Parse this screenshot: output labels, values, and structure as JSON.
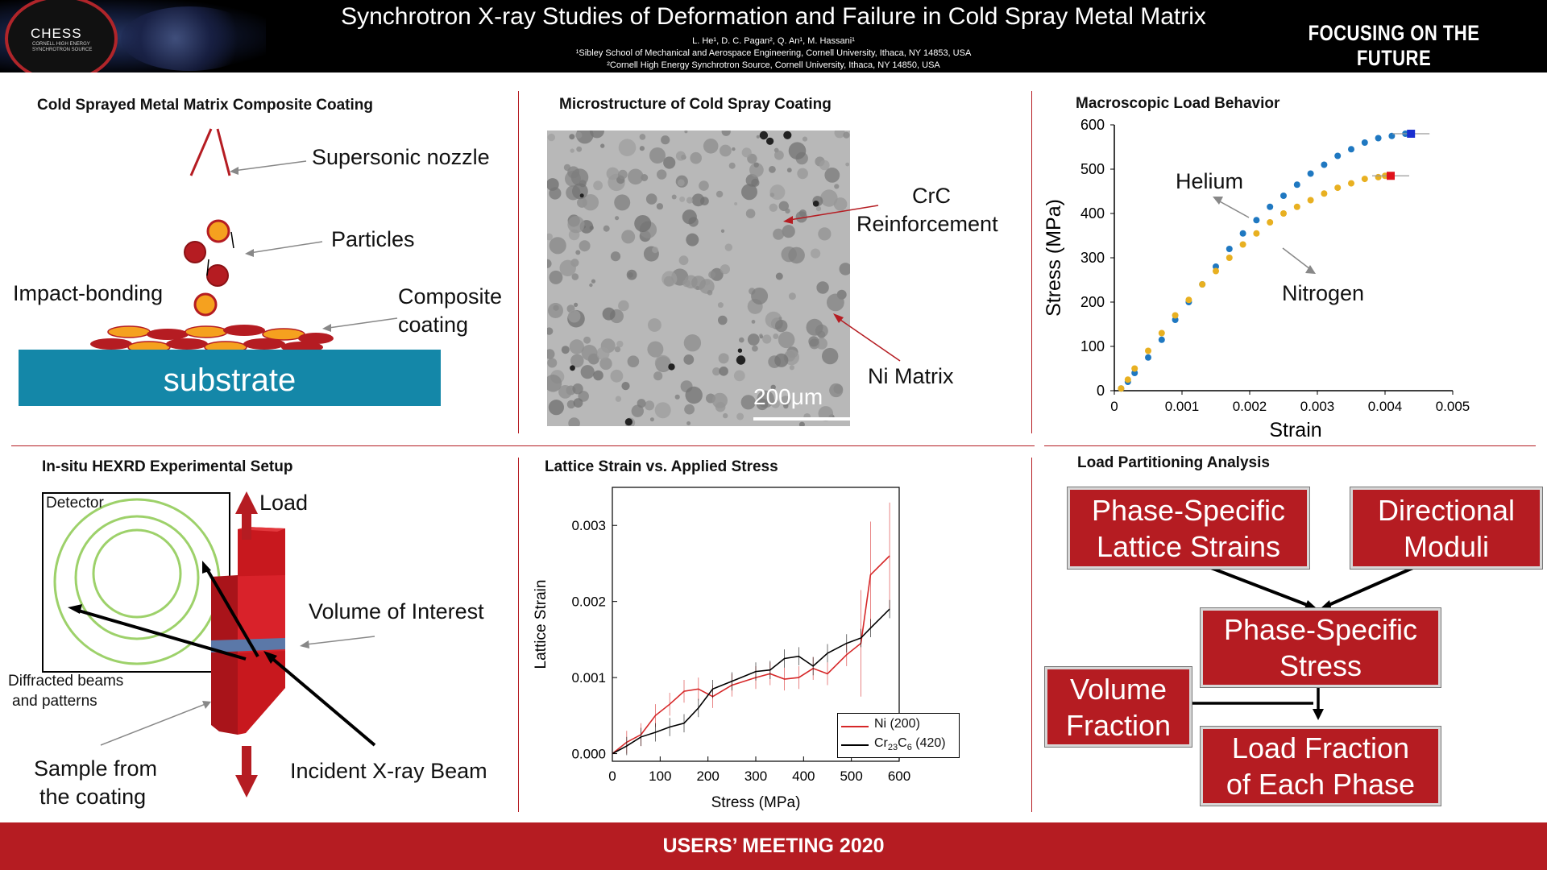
{
  "header": {
    "title": "Synchrotron X-ray Studies of Deformation and Failure in Cold Spray Metal Matrix",
    "authors": "L. He¹, D. C. Pagan², Q. An¹, M. Hassani¹",
    "affiliation1": "¹Sibley School of Mechanical and Aerospace Engineering, Cornell University, Ithaca, NY 14853, USA",
    "affiliation2": "²Cornell High Energy Synchrotron Source, Cornell University, Ithaca, NY 14850, USA",
    "tagline": "FOCUSING ON THE FUTURE",
    "logo_text": "CHESS",
    "logo_subtext": "CORNELL HIGH ENERGY SYNCHROTRON SOURCE"
  },
  "footer": {
    "text": "USERS’ MEETING 2020"
  },
  "panel1": {
    "title": "Cold Sprayed Metal Matrix Composite Coating",
    "nozzle": "Supersonic nozzle",
    "particles": "Particles",
    "impact": "Impact-bonding",
    "composite1": "Composite",
    "composite2": "coating",
    "substrate": "substrate"
  },
  "panel2": {
    "title": "Microstructure of Cold Spray Coating",
    "crc1": "CrC",
    "crc2": "Reinforcement",
    "ni": "Ni Matrix",
    "scale": "200μm"
  },
  "panel3": {
    "title": "Macroscopic Load Behavior",
    "helium": "Helium",
    "nitrogen": "Nitrogen",
    "colors": {
      "helium": "#1f78c1",
      "nitrogen": "#e8b021",
      "helium_end": "#1a2fd0",
      "nitrogen_end": "#e0121b"
    }
  },
  "panel4": {
    "title": "In-situ HEXRD Experimental Setup",
    "detector": "Detector",
    "load": "Load",
    "voi": "Volume of Interest",
    "diffracted1": "Diffracted beams",
    "diffracted2": "and patterns",
    "sample1": "Sample from",
    "sample2": "the coating",
    "beam": "Incident X-ray Beam"
  },
  "panel5": {
    "title": "Lattice Strain vs. Applied Stress",
    "legend_ni": "Ni (200)",
    "legend_cr_main": "Cr",
    "legend_cr_sub1": "23",
    "legend_cr_mid": "C",
    "legend_cr_sub2": "6",
    "legend_cr_tail": " (420)"
  },
  "panel6": {
    "title": "Load Partitioning Analysis",
    "box1_l1": "Phase-Specific",
    "box1_l2": "Lattice Strains",
    "box2_l1": "Directional",
    "box2_l2": "Moduli",
    "box3_l1": "Phase-Specific",
    "box3_l2": "Stress",
    "box4_l1": "Volume",
    "box4_l2": "Fraction",
    "box5_l1": "Load Fraction",
    "box5_l2": "of Each Phase"
  },
  "chart_data": [
    {
      "type": "scatter",
      "title": "Macroscopic Load Behavior",
      "xlabel": "Strain",
      "ylabel": "Stress (MPa)",
      "xlim": [
        0,
        0.005
      ],
      "ylim": [
        0,
        600
      ],
      "xticks": [
        "0",
        "0.001",
        "0.002",
        "0.003",
        "0.004",
        "0.005"
      ],
      "yticks": [
        "0",
        "100",
        "200",
        "300",
        "400",
        "500",
        "600"
      ],
      "grid": false,
      "series": [
        {
          "name": "Helium",
          "x": [
            0.0001,
            0.0002,
            0.0003,
            0.0005,
            0.0007,
            0.0009,
            0.0011,
            0.0013,
            0.0015,
            0.0017,
            0.0019,
            0.0021,
            0.0023,
            0.0025,
            0.0027,
            0.0029,
            0.0031,
            0.0033,
            0.0035,
            0.0037,
            0.0039,
            0.0041,
            0.0043
          ],
          "y": [
            5,
            20,
            40,
            75,
            115,
            160,
            200,
            240,
            280,
            320,
            355,
            385,
            415,
            440,
            465,
            490,
            510,
            530,
            545,
            560,
            570,
            575,
            580
          ]
        },
        {
          "name": "Nitrogen",
          "x": [
            0.0001,
            0.0002,
            0.0003,
            0.0005,
            0.0007,
            0.0009,
            0.0011,
            0.0013,
            0.0015,
            0.0017,
            0.0019,
            0.0021,
            0.0023,
            0.0025,
            0.0027,
            0.0029,
            0.0031,
            0.0033,
            0.0035,
            0.0037,
            0.0039,
            0.004
          ],
          "y": [
            5,
            25,
            50,
            90,
            130,
            170,
            205,
            240,
            270,
            300,
            330,
            355,
            380,
            400,
            415,
            430,
            445,
            458,
            468,
            478,
            482,
            485
          ]
        }
      ]
    },
    {
      "type": "line",
      "title": "Lattice Strain vs. Applied Stress",
      "xlabel": "Stress (MPa)",
      "ylabel": "Lattice Strain",
      "xlim": [
        0,
        600
      ],
      "ylim": [
        -0.0001,
        0.0035
      ],
      "xticks": [
        "0",
        "100",
        "200",
        "300",
        "400",
        "500",
        "600"
      ],
      "yticks": [
        "0.000",
        "0.001",
        "0.002",
        "0.003"
      ],
      "legend_position": "bottom-right",
      "series": [
        {
          "name": "Ni (200)",
          "color": "#d62728",
          "x": [
            0,
            30,
            60,
            90,
            120,
            150,
            180,
            210,
            250,
            300,
            330,
            360,
            390,
            420,
            450,
            490,
            520,
            540,
            580
          ],
          "y": [
            0.0,
            0.00015,
            0.00025,
            0.0005,
            0.00065,
            0.00082,
            0.00085,
            0.00075,
            0.0009,
            0.001,
            0.00105,
            0.00098,
            0.001,
            0.00112,
            0.00105,
            0.0013,
            0.00145,
            0.00235,
            0.0026
          ]
        },
        {
          "name": "Cr23C6 (420)",
          "color": "#000000",
          "x": [
            0,
            30,
            60,
            90,
            120,
            150,
            180,
            210,
            250,
            300,
            330,
            360,
            390,
            420,
            450,
            490,
            520,
            540,
            580
          ],
          "y": [
            0.0,
            0.0001,
            0.00022,
            0.00028,
            0.00035,
            0.0004,
            0.0006,
            0.00085,
            0.00095,
            0.00108,
            0.0011,
            0.00125,
            0.00128,
            0.00115,
            0.00132,
            0.00145,
            0.00152,
            0.00165,
            0.0019
          ]
        }
      ]
    }
  ]
}
